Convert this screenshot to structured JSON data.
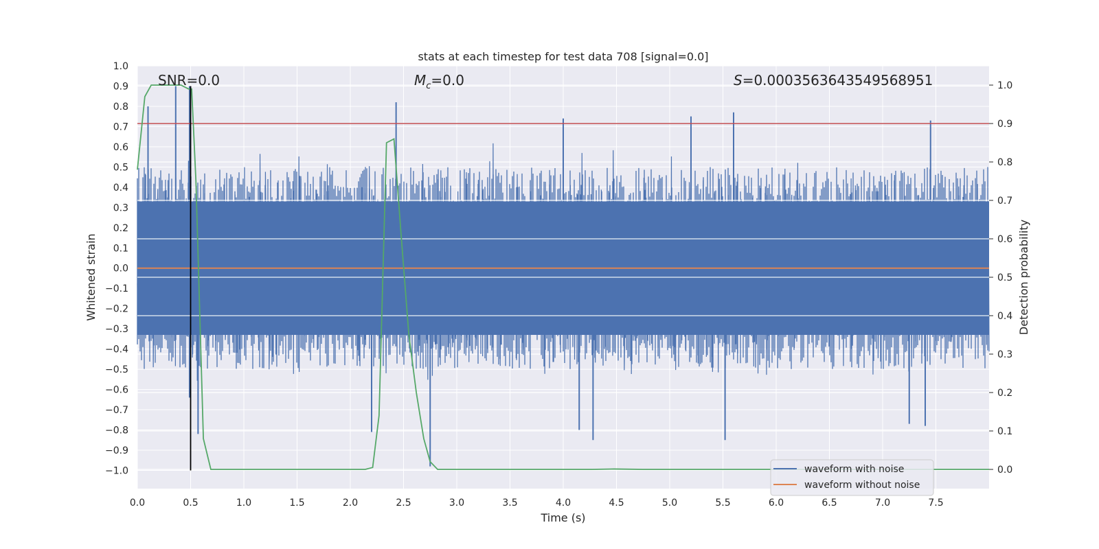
{
  "chart_data": {
    "type": "line",
    "title": "stats at each timestep for test data 708 [signal=0.0]",
    "xlabel": "Time (s)",
    "ylabel": "Whitened strain",
    "y2label": "Detection probability",
    "xlim": [
      0.0,
      8.0
    ],
    "ylim": [
      -1.09,
      1.0
    ],
    "y2lim": [
      -0.05,
      1.05
    ],
    "x_ticks": [
      0.0,
      0.5,
      1.0,
      1.5,
      2.0,
      2.5,
      3.0,
      3.5,
      4.0,
      4.5,
      5.0,
      5.5,
      6.0,
      6.5,
      7.0,
      7.5
    ],
    "x_tick_labels": [
      "0.0",
      "0.5",
      "1.0",
      "1.5",
      "2.0",
      "2.5",
      "3.0",
      "3.5",
      "4.0",
      "4.5",
      "5.0",
      "5.5",
      "6.0",
      "6.5",
      "7.0",
      "7.5"
    ],
    "y_ticks": [
      1.0,
      0.9,
      0.8,
      0.7,
      0.6,
      0.5,
      0.4,
      0.3,
      0.2,
      0.1,
      0.0,
      -0.1,
      -0.2,
      -0.3,
      -0.4,
      -0.5,
      -0.6,
      -0.7,
      -0.8,
      -0.9,
      -1.0
    ],
    "y_tick_labels": [
      "1.0",
      "0.9",
      "0.8",
      "0.7",
      "0.6",
      "0.5",
      "0.4",
      "0.3",
      "0.2",
      "0.1",
      "0.0",
      "−0.1",
      "−0.2",
      "−0.3",
      "−0.4",
      "−0.5",
      "−0.6",
      "−0.7",
      "−0.8",
      "−0.9",
      "−1.0"
    ],
    "y2_ticks": [
      1.0,
      0.9,
      0.8,
      0.7,
      0.6,
      0.5,
      0.4,
      0.3,
      0.2,
      0.1,
      0.0
    ],
    "y2_tick_labels": [
      "1.0",
      "0.9",
      "0.8",
      "0.7",
      "0.6",
      "0.5",
      "0.4",
      "0.3",
      "0.2",
      "0.1",
      "0.0"
    ],
    "grid": true,
    "annotations": {
      "snr": "SNR=0.0",
      "mc_symbol": "M",
      "mc_sub": "c",
      "mc_value": "=0.0",
      "s_symbol": "S",
      "s_value": "=0.0003563643549568951"
    },
    "series": [
      {
        "name": "waveform with noise",
        "color": "#4c72b0",
        "kind": "noise",
        "typical_envelope": [
          -0.5,
          0.5
        ],
        "notable_peaks": [
          {
            "x": 0.1,
            "y": 0.8
          },
          {
            "x": 0.36,
            "y": 0.9
          },
          {
            "x": 0.49,
            "y": 0.9
          },
          {
            "x": 2.43,
            "y": 0.82
          },
          {
            "x": 4.0,
            "y": 0.74
          },
          {
            "x": 5.2,
            "y": 0.75
          },
          {
            "x": 5.6,
            "y": 0.77
          },
          {
            "x": 7.45,
            "y": 0.73
          }
        ],
        "notable_troughs": [
          {
            "x": 0.49,
            "y": -0.64
          },
          {
            "x": 0.57,
            "y": -0.82
          },
          {
            "x": 2.2,
            "y": -0.81
          },
          {
            "x": 2.75,
            "y": -0.98
          },
          {
            "x": 4.15,
            "y": -0.8
          },
          {
            "x": 4.28,
            "y": -0.85
          },
          {
            "x": 5.52,
            "y": -0.85
          },
          {
            "x": 7.25,
            "y": -0.77
          },
          {
            "x": 7.4,
            "y": -0.78
          }
        ]
      },
      {
        "name": "waveform without noise",
        "color": "#dd8452",
        "x": [
          0.0,
          8.0
        ],
        "y": [
          0.0,
          0.0
        ]
      },
      {
        "name": "detection probability",
        "color": "#55a868",
        "axis": "right",
        "x": [
          0.0,
          0.07,
          0.13,
          0.2,
          0.27,
          0.34,
          0.41,
          0.48,
          0.51,
          0.55,
          0.62,
          0.69,
          0.75,
          0.82,
          1.0,
          1.5,
          2.0,
          2.07,
          2.14,
          2.21,
          2.27,
          2.34,
          2.41,
          2.48,
          2.55,
          2.62,
          2.69,
          2.75,
          2.82,
          3.0,
          4.0,
          4.27,
          4.48,
          4.75,
          5.0,
          6.0,
          7.0,
          8.0
        ],
        "y": [
          0.78,
          0.97,
          1.0,
          1.0,
          1.0,
          1.0,
          1.0,
          0.99,
          0.99,
          0.75,
          0.08,
          0.0,
          0.0,
          0.0,
          0.0,
          0.0,
          0.0,
          0.0,
          0.0,
          0.005,
          0.14,
          0.85,
          0.86,
          0.6,
          0.35,
          0.2,
          0.08,
          0.02,
          0.0,
          0.0,
          0.0,
          0.0,
          0.001,
          0.0,
          0.0,
          0.0,
          0.0,
          0.0
        ]
      },
      {
        "name": "threshold",
        "color": "#c44e52",
        "axis": "right",
        "x": [
          0.0,
          8.0
        ],
        "y": [
          0.9,
          0.9
        ]
      },
      {
        "name": "marker",
        "color": "#000000",
        "x": [
          0.5,
          0.5
        ],
        "y": [
          -1.0,
          0.9
        ]
      }
    ],
    "legend": {
      "placement": "lower-right",
      "entries": [
        {
          "label": "waveform with noise",
          "color": "#4c72b0"
        },
        {
          "label": "waveform without noise",
          "color": "#dd8452"
        }
      ]
    },
    "colors": {
      "plot_background": "#eaeaf2",
      "grid": "#ffffff",
      "text": "#262626"
    }
  }
}
